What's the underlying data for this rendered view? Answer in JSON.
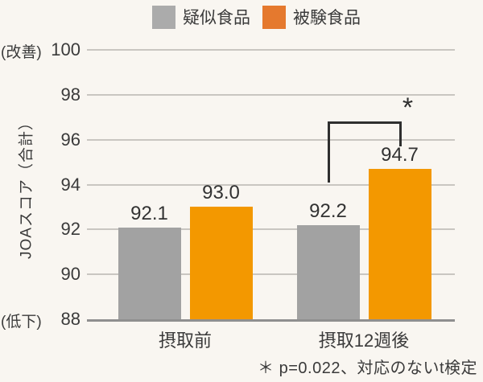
{
  "chart_data": {
    "type": "bar",
    "categories": [
      "摂取前",
      "摂取12週後"
    ],
    "series": [
      {
        "name": "疑似食品",
        "color": "#a2a2a2",
        "legend_color": "#ababab",
        "values": [
          92.1,
          92.2
        ],
        "labels": [
          "92.1",
          "92.2"
        ]
      },
      {
        "name": "被験食品",
        "color": "#f39800",
        "legend_color": "#e5792e",
        "values": [
          93.0,
          94.7
        ],
        "labels": [
          "93.0",
          "94.7"
        ]
      }
    ],
    "ylabel": "JOAスコア（合計）",
    "ylim": [
      88,
      100
    ],
    "yticks": [
      88,
      90,
      92,
      94,
      96,
      98,
      100
    ],
    "y_axis_annotations": {
      "top": "(改善)",
      "bottom": "(低下)"
    },
    "grid": true,
    "legend_position": "top",
    "significance": {
      "label": "*",
      "footnote": "＊ p=0.022、対応のないt検定",
      "category_index": 1,
      "from_series": 0,
      "to_series": 1,
      "top_value": 96.8,
      "left_end_value": 94.1,
      "right_end_value": 95.7
    }
  }
}
